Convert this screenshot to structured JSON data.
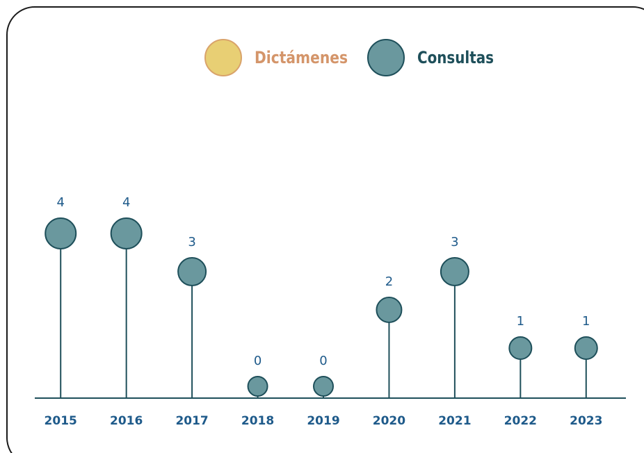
{
  "chart_data": {
    "type": "lollipop",
    "categories": [
      "2015",
      "2016",
      "2017",
      "2018",
      "2019",
      "2020",
      "2021",
      "2022",
      "2023"
    ],
    "series": [
      {
        "name": "Dictámenes",
        "color": "#e8cf74",
        "values": [
          null,
          null,
          null,
          null,
          null,
          null,
          null,
          null,
          null
        ]
      },
      {
        "name": "Consultas",
        "color": "#6a989e",
        "values": [
          4,
          4,
          3,
          0,
          0,
          2,
          3,
          1,
          1
        ]
      }
    ],
    "ylim": [
      0,
      5
    ]
  }
}
